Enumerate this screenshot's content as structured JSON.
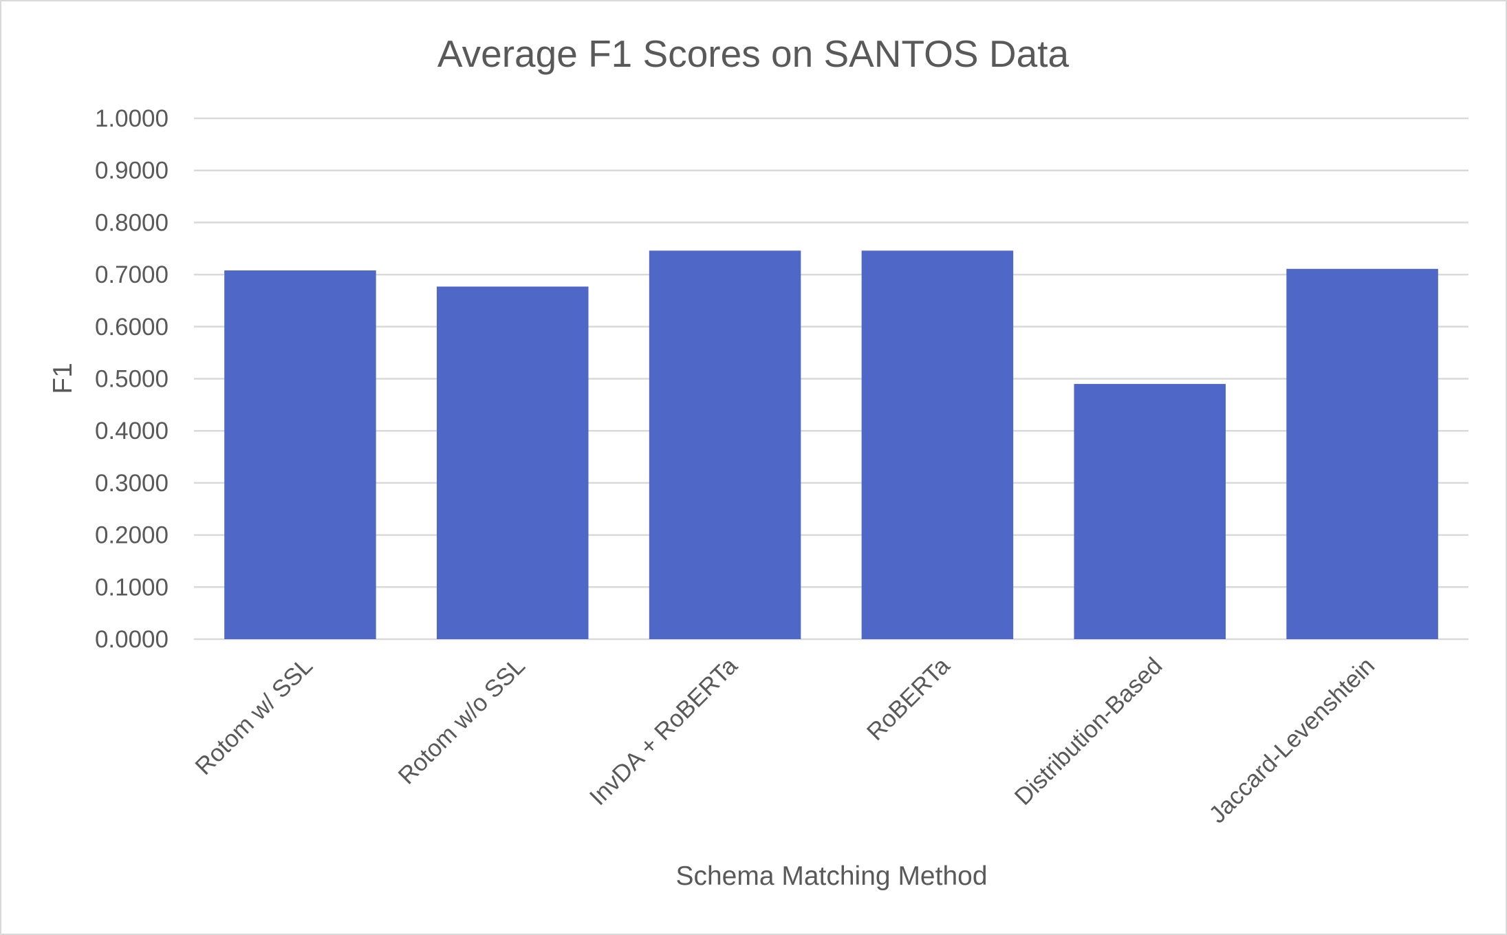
{
  "chart_data": {
    "type": "bar",
    "title": "Average F1 Scores on SANTOS Data",
    "xlabel": "Schema Matching Method",
    "ylabel": "F1",
    "categories": [
      "Rotom w/ SSL",
      "Rotom w/o SSL",
      "InvDA + RoBERTa",
      "RoBERTa",
      "Distribution-Based",
      "Jaccard-Levenshtein"
    ],
    "values": [
      0.708,
      0.677,
      0.746,
      0.746,
      0.49,
      0.711
    ],
    "ylim": [
      0,
      1
    ],
    "yticks": [
      "0.0000",
      "0.1000",
      "0.2000",
      "0.3000",
      "0.4000",
      "0.5000",
      "0.6000",
      "0.7000",
      "0.8000",
      "0.9000",
      "1.0000"
    ],
    "bar_color": "#4f67c7",
    "grid": true,
    "legend": "none"
  }
}
